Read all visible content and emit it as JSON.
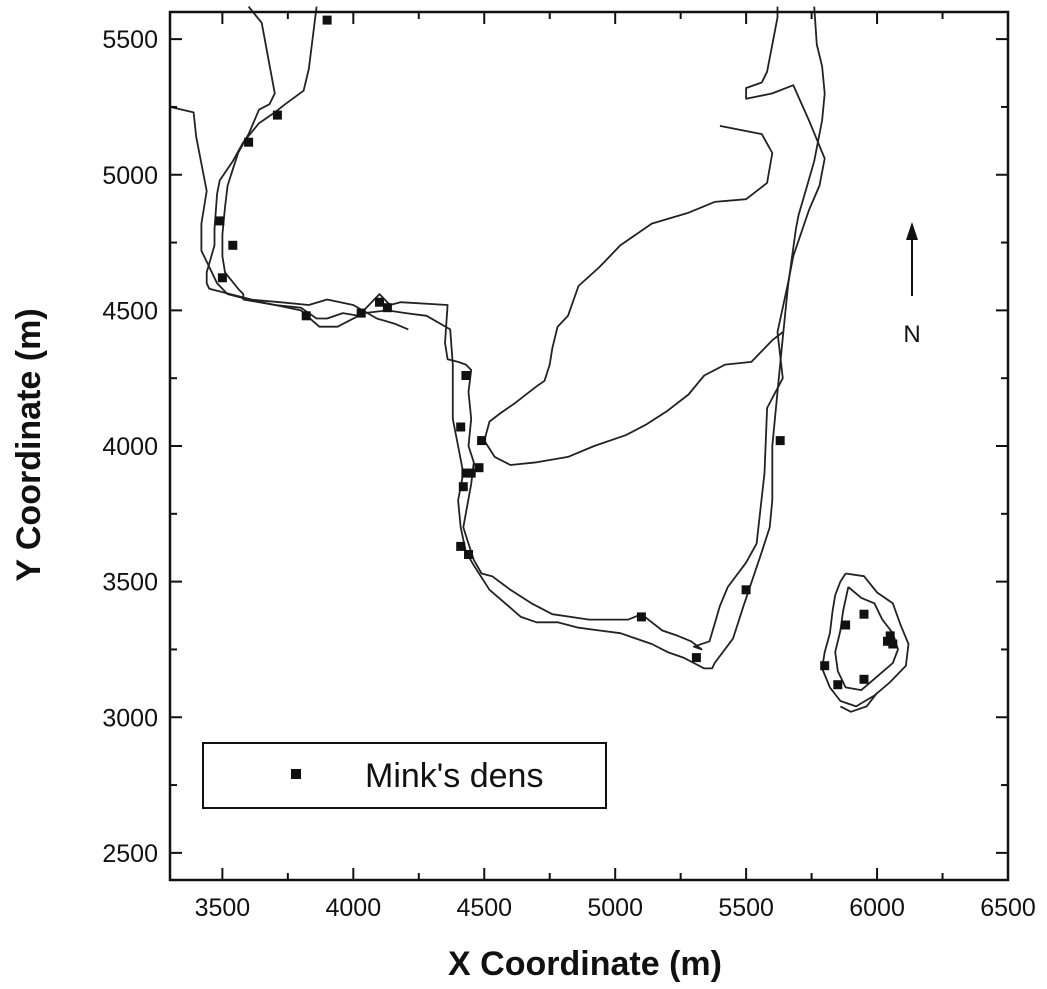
{
  "chart_data": {
    "type": "scatter",
    "title": "",
    "xlabel": "X Coordinate (m)",
    "ylabel": "Y Coordinate (m)",
    "xlim": [
      3300,
      6500
    ],
    "ylim": [
      2400,
      5600
    ],
    "xticks": [
      3500,
      4000,
      4500,
      5000,
      5500,
      6000,
      6500
    ],
    "yticks": [
      2500,
      3000,
      3500,
      4000,
      4500,
      5000,
      5500
    ],
    "xtick_labels": [
      "3500",
      "4000",
      "4500",
      "5000",
      "5500",
      "6000",
      "6500"
    ],
    "ytick_labels": [
      "2500",
      "3000",
      "3500",
      "4000",
      "4500",
      "5000",
      "5500"
    ],
    "grid": false,
    "legend_position": "bottom-left",
    "north_label": "N",
    "series": [
      {
        "name": "Mink's dens",
        "marker": "square",
        "color": "#111111",
        "points": [
          [
            3900,
            5570
          ],
          [
            3710,
            5220
          ],
          [
            3600,
            5120
          ],
          [
            3490,
            4830
          ],
          [
            3540,
            4740
          ],
          [
            3500,
            4620
          ],
          [
            3820,
            4480
          ],
          [
            4030,
            4490
          ],
          [
            4100,
            4530
          ],
          [
            4130,
            4510
          ],
          [
            4430,
            4260
          ],
          [
            4410,
            4070
          ],
          [
            4490,
            4020
          ],
          [
            4480,
            3920
          ],
          [
            4450,
            3900
          ],
          [
            4430,
            3900
          ],
          [
            4420,
            3850
          ],
          [
            4410,
            3630
          ],
          [
            4440,
            3600
          ],
          [
            5100,
            3370
          ],
          [
            5310,
            3220
          ],
          [
            5500,
            3470
          ],
          [
            5630,
            4020
          ],
          [
            5950,
            3380
          ],
          [
            5880,
            3340
          ],
          [
            6050,
            3300
          ],
          [
            6040,
            3280
          ],
          [
            6060,
            3270
          ],
          [
            5800,
            3190
          ],
          [
            5950,
            3140
          ],
          [
            5850,
            3120
          ]
        ]
      }
    ],
    "boundary_lines": [
      {
        "points": [
          [
            3600,
            5620
          ],
          [
            3650,
            5560
          ],
          [
            3700,
            5300
          ],
          [
            3680,
            5260
          ],
          [
            3640,
            5240
          ],
          [
            3600,
            5150
          ],
          [
            3560,
            5080
          ],
          [
            3540,
            5020
          ],
          [
            3520,
            4960
          ],
          [
            3510,
            4880
          ],
          [
            3500,
            4780
          ],
          [
            3500,
            4700
          ],
          [
            3510,
            4640
          ],
          [
            3560,
            4580
          ],
          [
            3580,
            4560
          ],
          [
            3580,
            4540
          ],
          [
            3700,
            4520
          ],
          [
            3800,
            4510
          ],
          [
            3860,
            4470
          ],
          [
            3900,
            4470
          ],
          [
            3960,
            4490
          ],
          [
            4020,
            4480
          ],
          [
            4100,
            4560
          ],
          [
            4140,
            4520
          ],
          [
            4180,
            4530
          ],
          [
            4360,
            4520
          ],
          [
            4350,
            4380
          ],
          [
            4360,
            4320
          ],
          [
            4400,
            4310
          ],
          [
            4430,
            4300
          ],
          [
            4450,
            4280
          ],
          [
            4440,
            4200
          ],
          [
            4450,
            4100
          ],
          [
            4440,
            4000
          ],
          [
            4460,
            3940
          ],
          [
            4450,
            3860
          ],
          [
            4420,
            3700
          ],
          [
            4440,
            3640
          ],
          [
            4460,
            3580
          ],
          [
            4490,
            3530
          ],
          [
            4530,
            3520
          ],
          [
            4600,
            3470
          ],
          [
            4680,
            3420
          ],
          [
            4760,
            3380
          ],
          [
            4830,
            3370
          ],
          [
            4900,
            3360
          ],
          [
            4980,
            3360
          ],
          [
            5050,
            3360
          ],
          [
            5100,
            3380
          ],
          [
            5180,
            3320
          ],
          [
            5240,
            3300
          ],
          [
            5290,
            3280
          ],
          [
            5330,
            3250
          ],
          [
            5300,
            3260
          ],
          [
            5360,
            3280
          ],
          [
            5400,
            3410
          ],
          [
            5430,
            3480
          ],
          [
            5500,
            3570
          ],
          [
            5540,
            3640
          ],
          [
            5570,
            3900
          ],
          [
            5580,
            4140
          ],
          [
            5640,
            4250
          ],
          [
            5620,
            4420
          ],
          [
            5660,
            4600
          ],
          [
            5680,
            4700
          ],
          [
            5740,
            4870
          ],
          [
            5780,
            4960
          ],
          [
            5800,
            5060
          ],
          [
            5740,
            5200
          ],
          [
            5680,
            5330
          ],
          [
            5600,
            5300
          ],
          [
            5500,
            5280
          ],
          [
            5500,
            5320
          ],
          [
            5560,
            5340
          ],
          [
            5580,
            5380
          ],
          [
            5620,
            5580
          ],
          [
            5620,
            5620
          ]
        ]
      },
      {
        "points": [
          [
            3860,
            5620
          ],
          [
            3830,
            5390
          ],
          [
            3810,
            5310
          ],
          [
            3740,
            5260
          ],
          [
            3700,
            5230
          ],
          [
            3640,
            5190
          ],
          [
            3580,
            5120
          ],
          [
            3540,
            5050
          ],
          [
            3490,
            4980
          ],
          [
            3480,
            4930
          ],
          [
            3470,
            4800
          ],
          [
            3470,
            4740
          ],
          [
            3440,
            4640
          ],
          [
            3440,
            4600
          ],
          [
            3450,
            4580
          ],
          [
            3530,
            4560
          ],
          [
            3650,
            4530
          ],
          [
            3800,
            4500
          ],
          [
            3870,
            4440
          ],
          [
            3940,
            4440
          ],
          [
            4040,
            4490
          ],
          [
            4130,
            4500
          ],
          [
            4200,
            4490
          ],
          [
            4280,
            4480
          ],
          [
            4370,
            4430
          ],
          [
            4380,
            4300
          ],
          [
            4380,
            4200
          ],
          [
            4380,
            4100
          ],
          [
            4400,
            4000
          ],
          [
            4420,
            3900
          ],
          [
            4400,
            3800
          ],
          [
            4410,
            3700
          ],
          [
            4430,
            3610
          ],
          [
            4460,
            3560
          ],
          [
            4520,
            3470
          ],
          [
            4580,
            3420
          ],
          [
            4640,
            3370
          ],
          [
            4700,
            3350
          ],
          [
            4780,
            3350
          ],
          [
            4860,
            3330
          ],
          [
            4940,
            3320
          ],
          [
            5020,
            3310
          ],
          [
            5080,
            3290
          ],
          [
            5140,
            3270
          ],
          [
            5200,
            3240
          ],
          [
            5260,
            3220
          ],
          [
            5300,
            3200
          ],
          [
            5340,
            3180
          ],
          [
            5370,
            3180
          ],
          [
            5380,
            3200
          ],
          [
            5450,
            3290
          ],
          [
            5490,
            3410
          ],
          [
            5560,
            3610
          ],
          [
            5590,
            3700
          ],
          [
            5600,
            3800
          ],
          [
            5600,
            4000
          ],
          [
            5620,
            4200
          ],
          [
            5640,
            4400
          ],
          [
            5660,
            4590
          ],
          [
            5690,
            4800
          ],
          [
            5700,
            4850
          ],
          [
            5730,
            4950
          ],
          [
            5760,
            5050
          ],
          [
            5790,
            5200
          ],
          [
            5800,
            5300
          ],
          [
            5790,
            5400
          ],
          [
            5770,
            5480
          ],
          [
            5760,
            5620
          ]
        ]
      },
      {
        "points": [
          [
            3300,
            5250
          ],
          [
            3390,
            5230
          ],
          [
            3400,
            5140
          ],
          [
            3440,
            4940
          ],
          [
            3420,
            4820
          ],
          [
            3420,
            4720
          ],
          [
            3450,
            4660
          ],
          [
            3480,
            4600
          ],
          [
            3520,
            4560
          ],
          [
            3600,
            4540
          ],
          [
            3720,
            4530
          ],
          [
            3830,
            4520
          ],
          [
            3900,
            4540
          ],
          [
            4000,
            4520
          ],
          [
            4090,
            4470
          ],
          [
            4160,
            4450
          ],
          [
            4210,
            4430
          ]
        ]
      },
      {
        "points": [
          [
            5400,
            5180
          ],
          [
            5560,
            5150
          ],
          [
            5600,
            5080
          ],
          [
            5580,
            4970
          ],
          [
            5500,
            4910
          ],
          [
            5380,
            4900
          ],
          [
            5280,
            4860
          ],
          [
            5140,
            4820
          ],
          [
            5020,
            4740
          ],
          [
            4940,
            4660
          ],
          [
            4860,
            4590
          ],
          [
            4820,
            4480
          ],
          [
            4780,
            4440
          ],
          [
            4760,
            4360
          ],
          [
            4750,
            4300
          ],
          [
            4730,
            4240
          ],
          [
            4700,
            4220
          ],
          [
            4620,
            4160
          ],
          [
            4560,
            4120
          ],
          [
            4520,
            4090
          ],
          [
            4500,
            4020
          ],
          [
            4540,
            3960
          ],
          [
            4600,
            3930
          ],
          [
            4700,
            3940
          ],
          [
            4820,
            3960
          ],
          [
            4920,
            4000
          ],
          [
            5040,
            4040
          ],
          [
            5120,
            4080
          ],
          [
            5200,
            4130
          ],
          [
            5280,
            4190
          ],
          [
            5340,
            4260
          ],
          [
            5420,
            4300
          ],
          [
            5520,
            4310
          ],
          [
            5560,
            4350
          ],
          [
            5600,
            4390
          ],
          [
            5640,
            4420
          ]
        ]
      },
      {
        "points": [
          [
            5880,
            3530
          ],
          [
            5950,
            3520
          ],
          [
            6000,
            3460
          ],
          [
            6060,
            3420
          ],
          [
            6090,
            3340
          ],
          [
            6120,
            3270
          ],
          [
            6110,
            3190
          ],
          [
            6050,
            3130
          ],
          [
            5990,
            3080
          ],
          [
            5920,
            3040
          ],
          [
            5860,
            3060
          ],
          [
            5820,
            3110
          ],
          [
            5790,
            3180
          ],
          [
            5800,
            3240
          ],
          [
            5820,
            3310
          ],
          [
            5830,
            3390
          ],
          [
            5840,
            3450
          ],
          [
            5860,
            3500
          ],
          [
            5880,
            3530
          ]
        ]
      },
      {
        "points": [
          [
            5890,
            3480
          ],
          [
            5940,
            3440
          ],
          [
            5990,
            3420
          ],
          [
            6020,
            3360
          ],
          [
            6060,
            3310
          ],
          [
            6080,
            3250
          ],
          [
            6060,
            3200
          ],
          [
            6000,
            3150
          ],
          [
            5940,
            3100
          ],
          [
            5880,
            3110
          ],
          [
            5850,
            3170
          ],
          [
            5840,
            3240
          ],
          [
            5860,
            3320
          ],
          [
            5870,
            3390
          ],
          [
            5890,
            3480
          ]
        ]
      },
      {
        "points": [
          [
            5860,
            3040
          ],
          [
            5900,
            3020
          ],
          [
            5960,
            3040
          ],
          [
            6000,
            3090
          ]
        ]
      }
    ]
  }
}
